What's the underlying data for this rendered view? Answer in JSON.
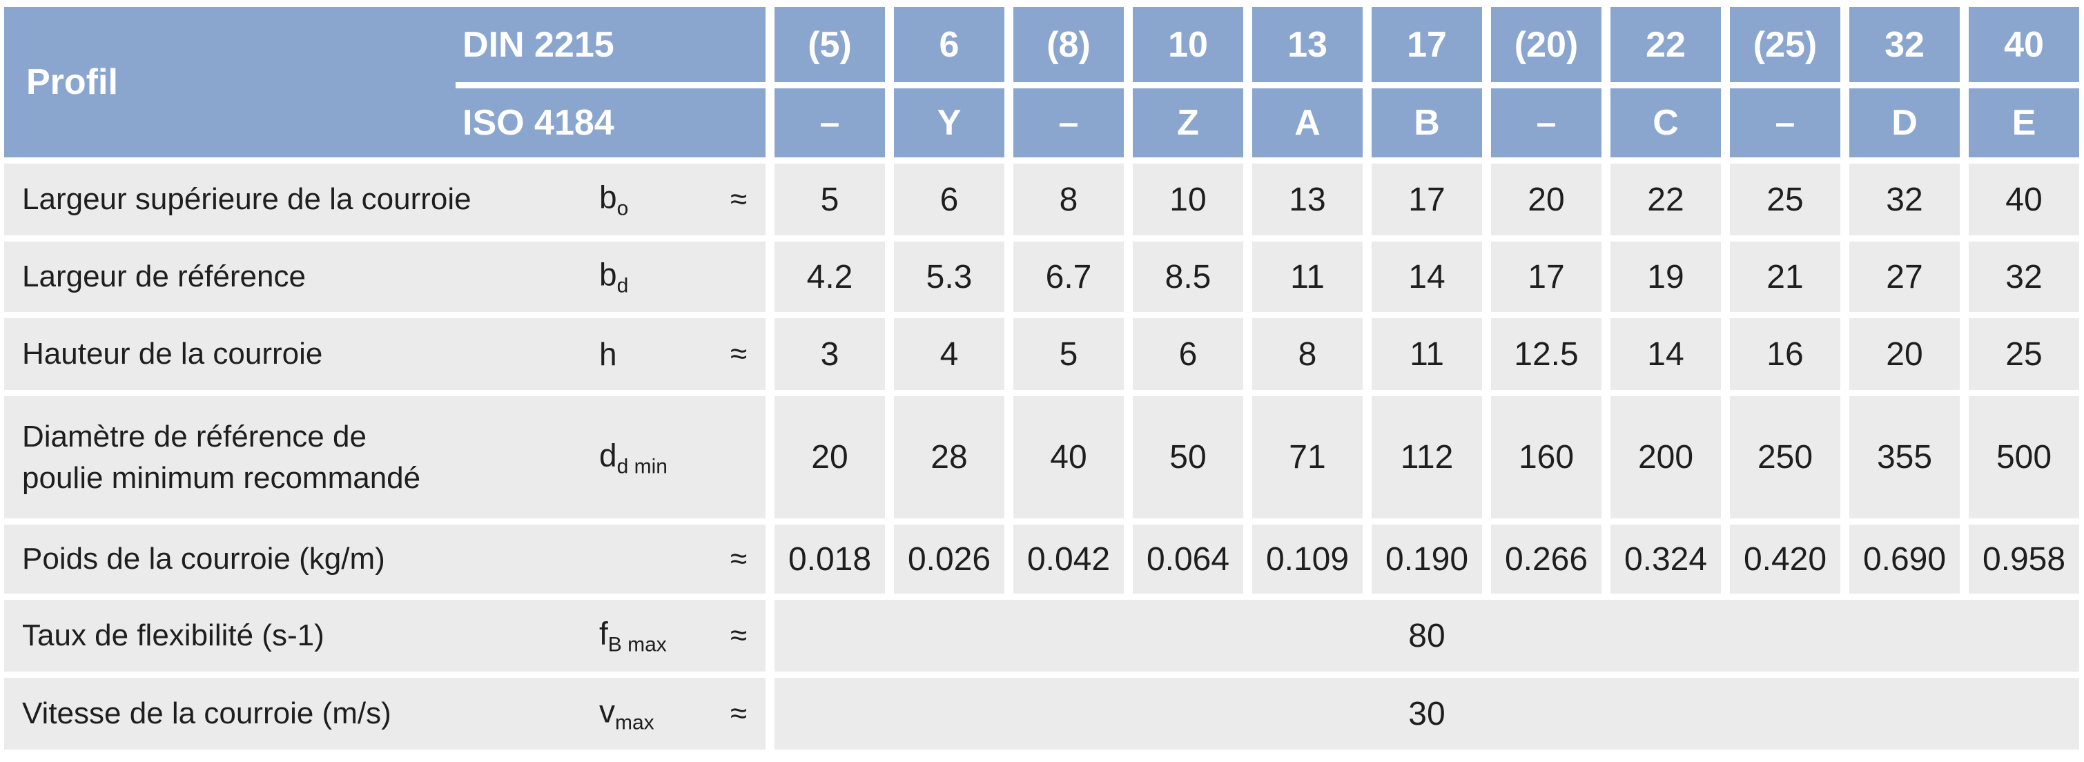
{
  "header": {
    "profil": "Profil",
    "din_label": "DIN 2215",
    "iso_label": "ISO 4184",
    "din": [
      "(5)",
      "6",
      "(8)",
      "10",
      "13",
      "17",
      "(20)",
      "22",
      "(25)",
      "32",
      "40"
    ],
    "iso": [
      "–",
      "Y",
      "–",
      "Z",
      "A",
      "B",
      "–",
      "C",
      "–",
      "D",
      "E"
    ]
  },
  "rows": [
    {
      "label": "Largeur supérieure de la courroie",
      "sym": "b",
      "sub": "o",
      "approx": "≈",
      "values": [
        "5",
        "6",
        "8",
        "10",
        "13",
        "17",
        "20",
        "22",
        "25",
        "32",
        "40"
      ]
    },
    {
      "label": "Largeur de référence",
      "sym": "b",
      "sub": "d",
      "approx": "",
      "values": [
        "4.2",
        "5.3",
        "6.7",
        "8.5",
        "11",
        "14",
        "17",
        "19",
        "21",
        "27",
        "32"
      ]
    },
    {
      "label": "Hauteur de la courroie",
      "sym": "h",
      "sub": "",
      "approx": "≈",
      "values": [
        "3",
        "4",
        "5",
        "6",
        "8",
        "11",
        "12.5",
        "14",
        "16",
        "20",
        "25"
      ]
    },
    {
      "label": "Diamètre de référence de\npoulie minimum recommandé",
      "sym": "d",
      "sub": "d min",
      "approx": "",
      "values": [
        "20",
        "28",
        "40",
        "50",
        "71",
        "112",
        "160",
        "200",
        "250",
        "355",
        "500"
      ]
    },
    {
      "label": "Poids de la courroie (kg/m)",
      "sym": "",
      "sub": "",
      "approx": "≈",
      "values": [
        "0.018",
        "0.026",
        "0.042",
        "0.064",
        "0.109",
        "0.190",
        "0.266",
        "0.324",
        "0.420",
        "0.690",
        "0.958"
      ]
    },
    {
      "label": "Taux de flexibilité (s-1)",
      "sym": "f",
      "sub": "B max",
      "approx": "≈",
      "span_value": "80"
    },
    {
      "label": "Vitesse de la courroie (m/s)",
      "sym": "v",
      "sub": "max",
      "approx": "≈",
      "span_value": "30"
    }
  ],
  "colors": {
    "header_bg": "#8aa6cf",
    "cell_bg": "#ebebeb",
    "header_text": "#ffffff"
  }
}
